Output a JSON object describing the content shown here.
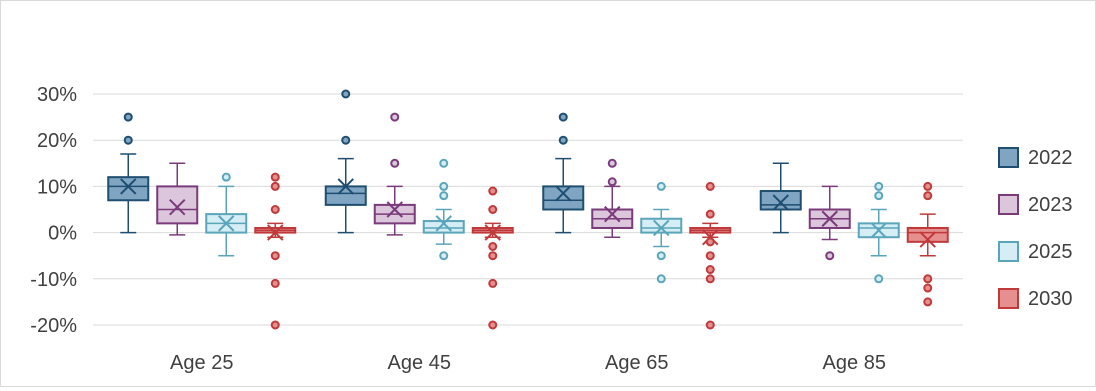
{
  "chart_data": {
    "type": "box",
    "title": "",
    "xlabel": "",
    "ylabel": "",
    "categories": [
      "Age 25",
      "Age 45",
      "Age 65",
      "Age 85"
    ],
    "y_unit": "%",
    "ylim": [
      -20,
      30
    ],
    "yticks": [
      30,
      20,
      10,
      0,
      -10,
      -20
    ],
    "ytick_labels": [
      "30%",
      "20%",
      "10%",
      "0%",
      "-10%",
      "-20%"
    ],
    "grid": true,
    "legend_position": "right",
    "series": [
      {
        "name": "2022",
        "fill": "#7fa5c2",
        "stroke": "#1f4e70",
        "boxes": [
          {
            "min": 0,
            "q1": 7,
            "median": 10,
            "q3": 12,
            "max": 17,
            "mean": 10,
            "outliers": [
              20,
              25
            ]
          },
          {
            "min": 0,
            "q1": 6,
            "median": 8.5,
            "q3": 10,
            "max": 16,
            "mean": 10,
            "outliers": [
              20,
              30
            ]
          },
          {
            "min": 0,
            "q1": 5,
            "median": 7,
            "q3": 10,
            "max": 16,
            "mean": 8.5,
            "outliers": [
              20,
              25
            ]
          },
          {
            "min": 0,
            "q1": 5,
            "median": 6,
            "q3": 9,
            "max": 15,
            "mean": 6.5,
            "outliers": []
          }
        ]
      },
      {
        "name": "2023",
        "fill": "#dcc6dc",
        "stroke": "#7a3b7a",
        "boxes": [
          {
            "min": -0.5,
            "q1": 2,
            "median": 5,
            "q3": 10,
            "max": 15,
            "mean": 5.5,
            "outliers": []
          },
          {
            "min": -0.5,
            "q1": 2,
            "median": 4,
            "q3": 6,
            "max": 10,
            "mean": 5,
            "outliers": [
              15,
              25
            ]
          },
          {
            "min": -1,
            "q1": 1,
            "median": 3,
            "q3": 5,
            "max": 10,
            "mean": 4,
            "outliers": [
              11,
              15
            ]
          },
          {
            "min": -1.5,
            "q1": 1,
            "median": 3,
            "q3": 5,
            "max": 10,
            "mean": 3,
            "outliers": [
              -5
            ]
          }
        ]
      },
      {
        "name": "2025",
        "fill": "#d5edf4",
        "stroke": "#5aa5ba",
        "boxes": [
          {
            "min": -5,
            "q1": 0,
            "median": 2,
            "q3": 4,
            "max": 10,
            "mean": 2,
            "outliers": [
              12
            ]
          },
          {
            "min": -2.5,
            "q1": 0,
            "median": 1,
            "q3": 2.5,
            "max": 5,
            "mean": 2,
            "outliers": [
              -5,
              8,
              10,
              15
            ]
          },
          {
            "min": -3,
            "q1": 0,
            "median": 1,
            "q3": 3,
            "max": 5,
            "mean": 1,
            "outliers": [
              -5,
              -10,
              10
            ]
          },
          {
            "min": -5,
            "q1": -1,
            "median": 1,
            "q3": 2,
            "max": 5,
            "mean": 0.5,
            "outliers": [
              -10,
              8,
              10
            ]
          }
        ]
      },
      {
        "name": "2030",
        "fill": "#e68f8f",
        "stroke": "#c0393b",
        "boxes": [
          {
            "min": -1,
            "q1": 0,
            "median": 0.5,
            "q3": 1,
            "max": 2,
            "mean": 0,
            "outliers": [
              -5,
              -11,
              -20,
              5,
              10,
              12
            ]
          },
          {
            "min": -1,
            "q1": 0,
            "median": 0.5,
            "q3": 1,
            "max": 2,
            "mean": 0,
            "outliers": [
              -3,
              -5,
              -11,
              -20,
              5,
              9
            ]
          },
          {
            "min": -1,
            "q1": 0,
            "median": 0.5,
            "q3": 1,
            "max": 2,
            "mean": -1,
            "outliers": [
              -2,
              -5,
              -8,
              -10,
              -20,
              4,
              10
            ]
          },
          {
            "min": -5,
            "q1": -2,
            "median": 0,
            "q3": 1,
            "max": 4,
            "mean": -1.5,
            "outliers": [
              -10,
              -12,
              -15,
              8,
              10
            ]
          }
        ]
      }
    ]
  }
}
